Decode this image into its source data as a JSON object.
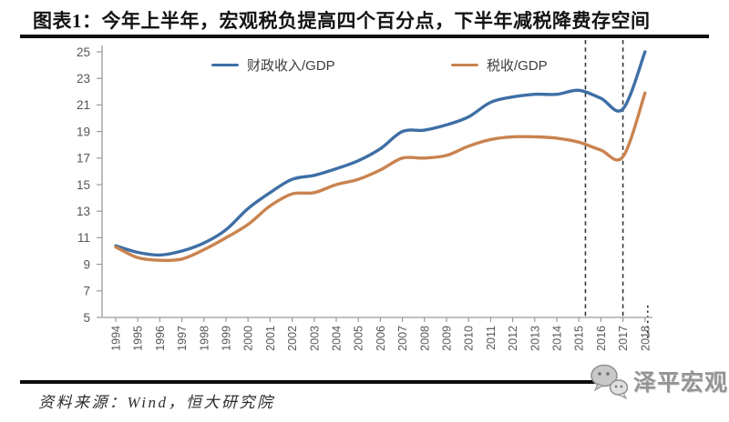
{
  "title": "图表1：今年上半年，宏观税负提高四个百分点，下半年减税降费存空间",
  "source": "资料来源：Wind，恒大研究院",
  "watermark": "泽平宏观",
  "colors": {
    "fiscal_line": "#3E6FA5",
    "tax_line": "#C9834F",
    "axis": "#9a9a9a",
    "tick_label": "#555555",
    "dashed_line": "#383838",
    "title_text": "#141414",
    "divider": "#0d0d0d",
    "watermark_gray": "#949494"
  },
  "chart_data": {
    "type": "line",
    "title": "",
    "xlabel": "",
    "ylabel": "",
    "categories": [
      "1994",
      "1995",
      "1996",
      "1997",
      "1998",
      "1999",
      "2000",
      "2001",
      "2002",
      "2003",
      "2004",
      "2005",
      "2006",
      "2007",
      "2008",
      "2009",
      "2010",
      "2011",
      "2012",
      "2013",
      "2014",
      "2015",
      "2016",
      "2017",
      "2018"
    ],
    "series": [
      {
        "name": "财政收入/GDP",
        "color": "#3E6FA5",
        "values": [
          10.4,
          9.9,
          9.7,
          10.0,
          10.6,
          11.6,
          13.2,
          14.4,
          15.4,
          15.7,
          16.2,
          16.8,
          17.7,
          19.0,
          19.1,
          19.5,
          20.1,
          21.2,
          21.6,
          21.8,
          21.8,
          22.1,
          21.5,
          20.7,
          25.0
        ]
      },
      {
        "name": "税收/GDP",
        "color": "#C9834F",
        "values": [
          10.3,
          9.5,
          9.3,
          9.4,
          10.1,
          11.0,
          12.0,
          13.4,
          14.3,
          14.4,
          15.0,
          15.4,
          16.1,
          17.0,
          17.0,
          17.2,
          17.9,
          18.4,
          18.6,
          18.6,
          18.5,
          18.2,
          17.6,
          17.1,
          21.9
        ]
      }
    ],
    "ylim": [
      5,
      25
    ],
    "yticks": [
      5,
      7,
      9,
      11,
      13,
      15,
      17,
      19,
      21,
      23,
      25
    ],
    "grid": false,
    "legend_position": "top",
    "annotations": {
      "vline_years": [
        2015.3,
        2017
      ],
      "partial_year_marker": 2018,
      "note": "2018 value is first-half year, marked with short dotted tick"
    }
  }
}
